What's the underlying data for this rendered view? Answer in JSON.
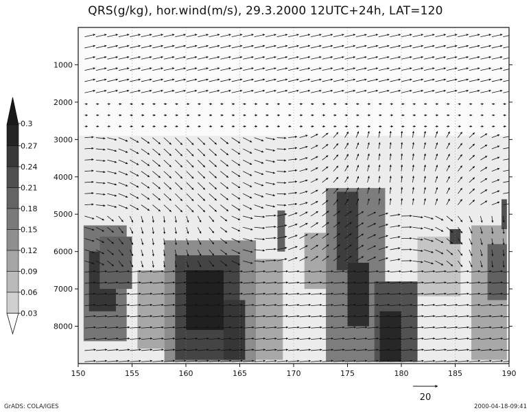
{
  "chart_data": {
    "type": "heatmap",
    "title": "QRS(g/kg), hor.wind(m/s), 29.3.2000 12UTC+24h, LAT=120",
    "x_ticks": [
      "150",
      "155",
      "160",
      "165",
      "170",
      "175",
      "180",
      "185",
      "190"
    ],
    "xlim": [
      150,
      190
    ],
    "y_ticks": [
      "1000",
      "2000",
      "3000",
      "4000",
      "5000",
      "6000",
      "7000",
      "8000"
    ],
    "ylim": [
      0,
      9000
    ],
    "y_inverted": true,
    "colorbar": {
      "levels": [
        "0.3",
        "0.27",
        "0.24",
        "0.21",
        "0.18",
        "0.15",
        "0.12",
        "0.09",
        "0.06",
        "0.03"
      ]
    },
    "vector_reference": {
      "value": "20"
    },
    "qrs_regions": [
      {
        "x0": 150.5,
        "x1": 154.5,
        "y0": 5300,
        "y1": 8400,
        "level": 0.17
      },
      {
        "x0": 151.0,
        "x1": 153.5,
        "y0": 6000,
        "y1": 7600,
        "level": 0.26
      },
      {
        "x0": 152.0,
        "x1": 155.0,
        "y0": 5600,
        "y1": 7000,
        "level": 0.2
      },
      {
        "x0": 155.5,
        "x1": 158.0,
        "y0": 6500,
        "y1": 8600,
        "level": 0.1
      },
      {
        "x0": 158.0,
        "x1": 166.5,
        "y0": 5700,
        "y1": 8950,
        "level": 0.14
      },
      {
        "x0": 159.0,
        "x1": 165.0,
        "y0": 6100,
        "y1": 8900,
        "level": 0.24
      },
      {
        "x0": 160.0,
        "x1": 163.5,
        "y0": 6500,
        "y1": 8100,
        "level": 0.29
      },
      {
        "x0": 163.5,
        "x1": 165.5,
        "y0": 7300,
        "y1": 8900,
        "level": 0.26
      },
      {
        "x0": 166.5,
        "x1": 169.0,
        "y0": 6200,
        "y1": 8900,
        "level": 0.1
      },
      {
        "x0": 168.5,
        "x1": 169.2,
        "y0": 4900,
        "y1": 6000,
        "level": 0.2
      },
      {
        "x0": 171.0,
        "x1": 173.0,
        "y0": 5500,
        "y1": 7000,
        "level": 0.1
      },
      {
        "x0": 173.0,
        "x1": 178.5,
        "y0": 4300,
        "y1": 8950,
        "level": 0.16
      },
      {
        "x0": 174.0,
        "x1": 176.0,
        "y0": 4400,
        "y1": 6500,
        "level": 0.25
      },
      {
        "x0": 175.0,
        "x1": 177.0,
        "y0": 6300,
        "y1": 8000,
        "level": 0.27
      },
      {
        "x0": 177.5,
        "x1": 181.5,
        "y0": 6800,
        "y1": 8950,
        "level": 0.22
      },
      {
        "x0": 178.0,
        "x1": 180.0,
        "y0": 7600,
        "y1": 8950,
        "level": 0.28
      },
      {
        "x0": 181.5,
        "x1": 185.5,
        "y0": 5600,
        "y1": 7200,
        "level": 0.06
      },
      {
        "x0": 184.5,
        "x1": 185.5,
        "y0": 5400,
        "y1": 5800,
        "level": 0.24
      },
      {
        "x0": 186.5,
        "x1": 189.8,
        "y0": 5300,
        "y1": 8900,
        "level": 0.1
      },
      {
        "x0": 188.0,
        "x1": 189.8,
        "y0": 5800,
        "y1": 7300,
        "level": 0.2
      },
      {
        "x0": 189.3,
        "x1": 189.8,
        "y0": 4600,
        "y1": 5400,
        "level": 0.22
      }
    ]
  },
  "footer": {
    "left": "GrADS: COLA/IGES",
    "right": "2000-04-18-09:41"
  }
}
